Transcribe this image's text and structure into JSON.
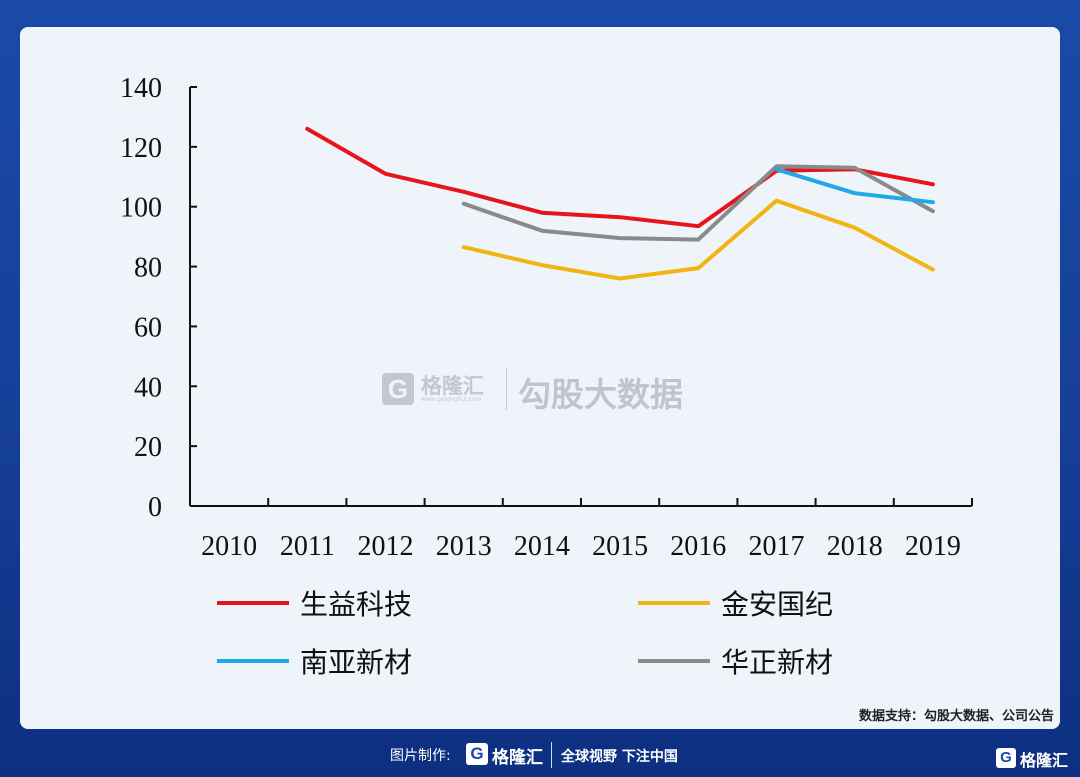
{
  "chart_data": {
    "type": "line",
    "title": "",
    "xlabel": "",
    "ylabel": "",
    "categories": [
      "2010",
      "2011",
      "2012",
      "2013",
      "2014",
      "2015",
      "2016",
      "2017",
      "2018",
      "2019"
    ],
    "ylim": [
      0,
      140
    ],
    "yticks": [
      0,
      20,
      40,
      60,
      80,
      100,
      120,
      140
    ],
    "grid": false,
    "legend_position": "bottom",
    "series": [
      {
        "name": "生益科技",
        "color": "#e8141c",
        "values": [
          null,
          126,
          111,
          105,
          98,
          96.5,
          93.5,
          112,
          112.5,
          107.5
        ]
      },
      {
        "name": "金安国纪",
        "color": "#f0b512",
        "values": [
          null,
          null,
          null,
          86.5,
          80.5,
          76,
          79.5,
          102,
          93,
          79
        ]
      },
      {
        "name": "南亚新材",
        "color": "#21a8e8",
        "values": [
          null,
          null,
          null,
          null,
          null,
          null,
          null,
          112.5,
          104.5,
          101.5
        ]
      },
      {
        "name": "华正新材",
        "color": "#8a8a8a",
        "values": [
          null,
          null,
          null,
          101,
          92,
          89.5,
          89,
          113.5,
          113,
          98.5
        ]
      }
    ]
  },
  "watermark": {
    "mark": "G",
    "brand": "格隆汇",
    "brand_sub": "www.gelonghui.com",
    "text": "勾股大数据"
  },
  "source_note": "数据支持：勾股大数据、公司公告",
  "footer": {
    "made_by_label": "图片制作:",
    "logo_mark": "G",
    "logo_name": "格隆汇",
    "slogan": "全球视野 下注中国",
    "corner_mark": "G",
    "corner_name": "格隆汇"
  }
}
